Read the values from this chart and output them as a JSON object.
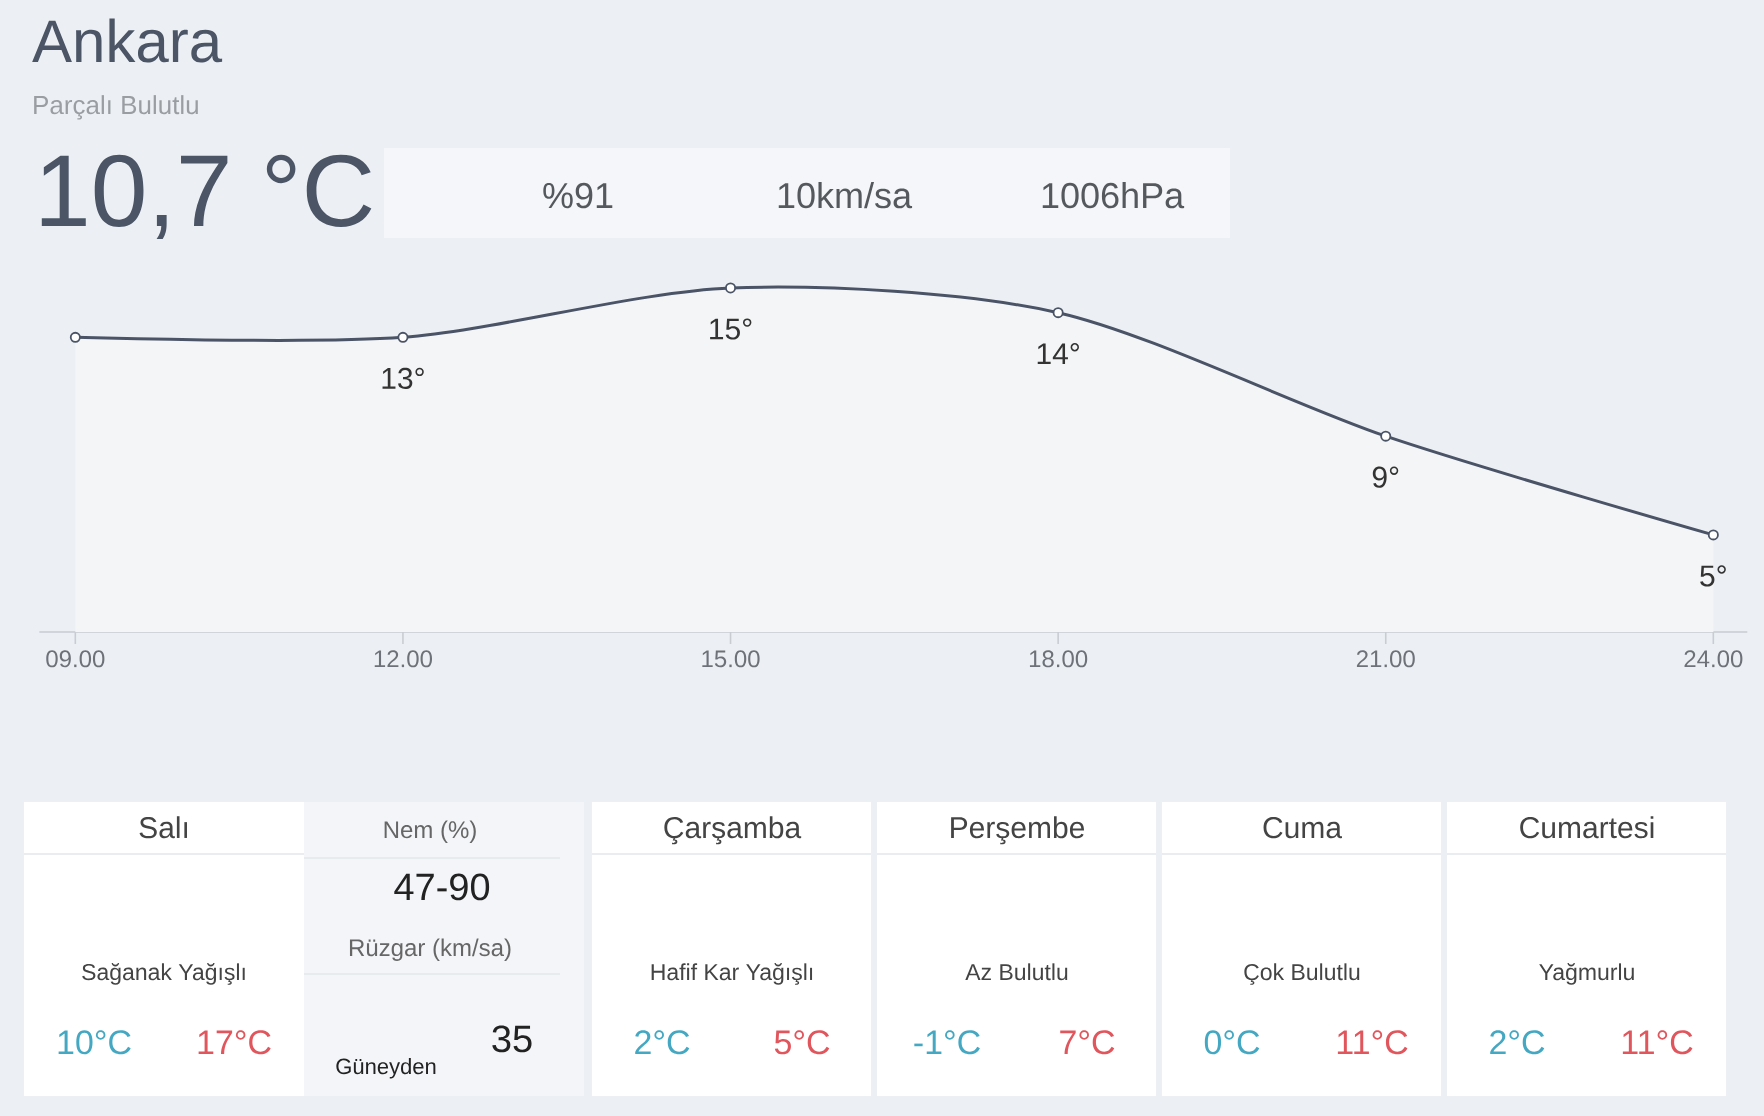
{
  "chart_data": [
    {
      "type": "area",
      "title": "Ankara",
      "subtitle": "Parçalı Bulutlu",
      "categories": [
        "09.00",
        "12.00",
        "15.00",
        "18.00",
        "21.00",
        "24.00"
      ],
      "values": [
        13,
        13,
        15,
        14,
        9,
        5
      ],
      "color": "#4a5466",
      "value_labels": [
        null,
        "13°",
        "15°",
        "14°",
        "9°",
        "5°"
      ],
      "marker": "circle",
      "annotations": [
        "10,7 °C",
        "%91",
        "10km/sa",
        "1006hPa"
      ]
    },
    {
      "type": "other",
      "annotations": [
        "Salı",
        "Sağanak Yağışlı",
        "10°C",
        "17°C",
        "Çarşamba",
        "Hafif Kar Yağışlı",
        "2°C",
        "5°C",
        "Perşembe",
        "Az Bulutlu",
        "-1°C",
        "7°C",
        "Cuma",
        "Çok Bulutlu",
        "0°C",
        "11°C",
        "Cumartesi",
        "Yağmurlu",
        "2°C",
        "11°C",
        "Nem (%)",
        "47-90",
        "Rüzgar (km/sa)",
        "35",
        "Güneyden"
      ]
    }
  ]
}
